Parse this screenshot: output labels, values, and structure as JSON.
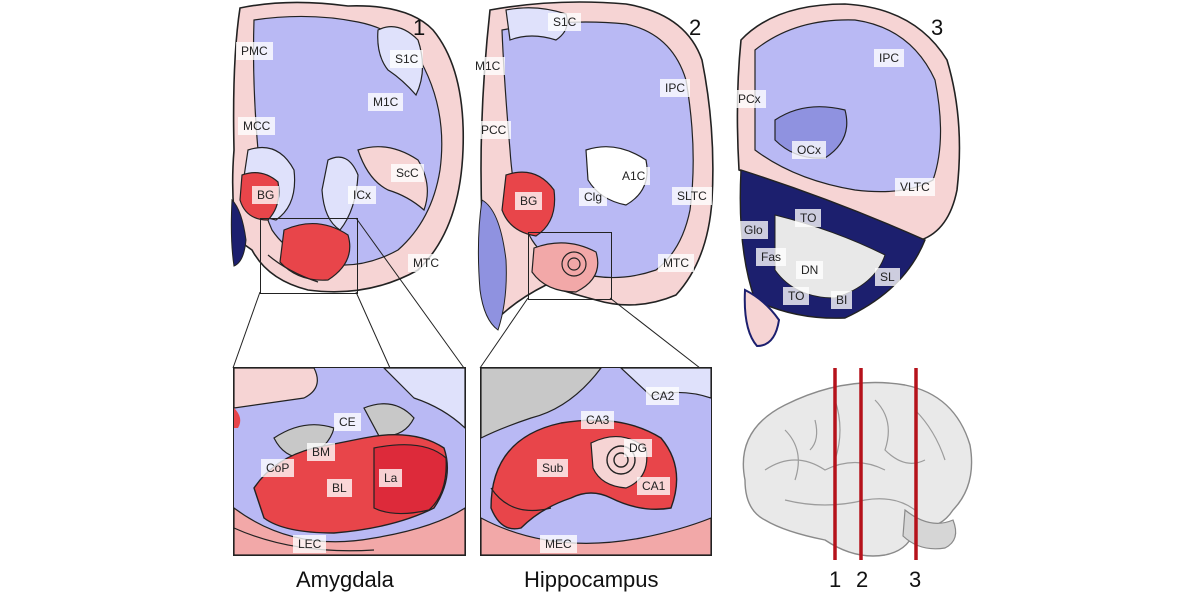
{
  "section1": {
    "number": "1",
    "labels": {
      "pmc": "PMC",
      "s1c": "S1C",
      "m1c": "M1C",
      "mcc": "MCC",
      "scc": "ScC",
      "bg": "BG",
      "icx": "ICx",
      "mtc": "MTC"
    }
  },
  "section2": {
    "number": "2",
    "labels": {
      "s1c": "S1C",
      "m1c": "M1C",
      "ipc": "IPC",
      "pcc": "PCC",
      "a1c": "A1C",
      "bg": "BG",
      "clg": "Clg",
      "sltc": "SLTC",
      "mtc": "MTC"
    }
  },
  "section3": {
    "number": "3",
    "labels": {
      "ipc": "IPC",
      "pcx": "PCx",
      "ocx": "OCx",
      "vltc": "VLTC",
      "to_top": "TO",
      "glo": "Glo",
      "fas": "Fas",
      "dn": "DN",
      "sl": "SL",
      "to_bottom": "TO",
      "bi": "BI"
    }
  },
  "amygdala": {
    "caption": "Amygdala",
    "labels": {
      "ce": "CE",
      "bm": "BM",
      "cop": "CoP",
      "bl": "BL",
      "la": "La",
      "lec": "LEC"
    }
  },
  "hippocampus": {
    "caption": "Hippocampus",
    "labels": {
      "ca2": "CA2",
      "ca3": "CA3",
      "dg": "DG",
      "sub": "Sub",
      "ca1": "CA1",
      "mec": "MEC"
    }
  },
  "brain_sections": {
    "line1": "1",
    "line2": "2",
    "line3": "3"
  },
  "colors": {
    "white_matter": "#b9b9f4",
    "light_blue": "#dfe1fb",
    "pale_pink": "#f6d4d4",
    "pink": "#f2a8a8",
    "red": "#e8454a",
    "dark_red": "#d42030",
    "gray": "#c8c8c8",
    "navy": "#1c1f6e",
    "section_line": "#b5121b"
  }
}
